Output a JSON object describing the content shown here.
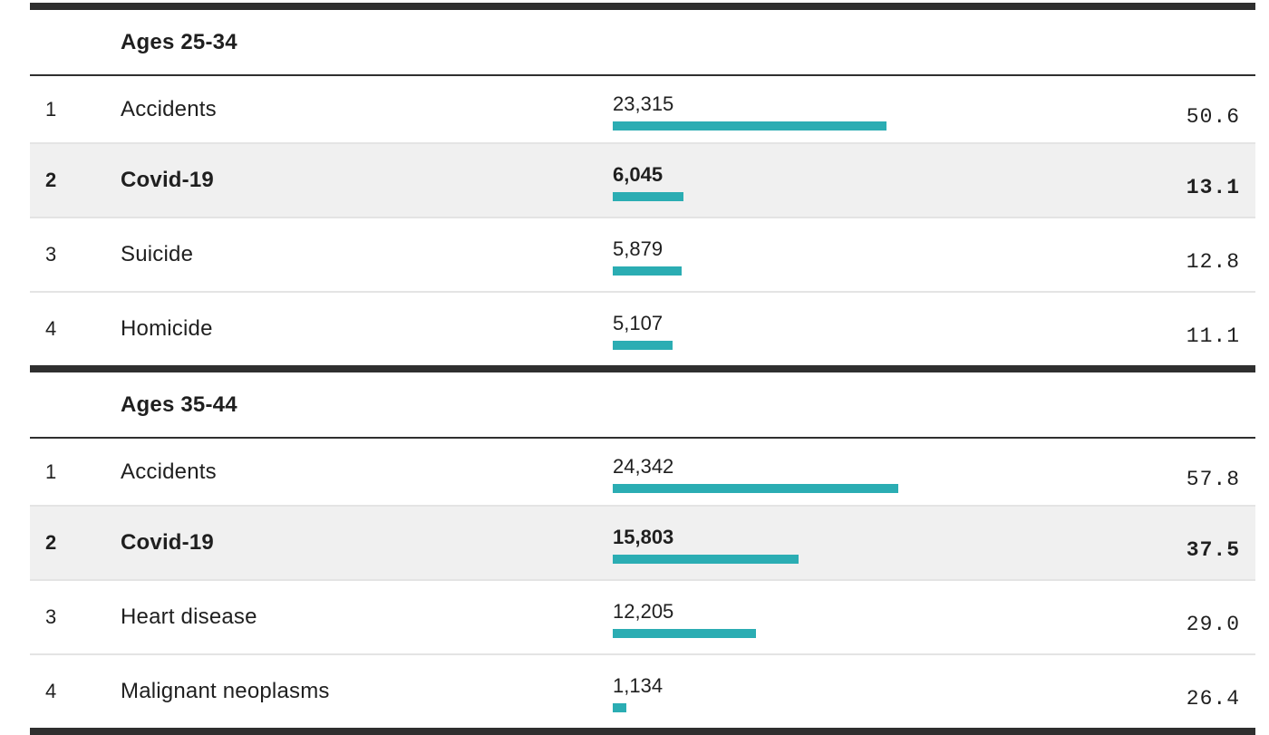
{
  "accent_color": "#2badb3",
  "highlight_bg_color": "#f0f0f0",
  "rule_color": "#2f2f2f",
  "sections": [
    {
      "title": "Ages 25-34",
      "rows": [
        {
          "rank": "1",
          "cause": "Accidents",
          "deaths": "23,315",
          "deaths_value": 23315,
          "rate": "50.6",
          "highlight": false
        },
        {
          "rank": "2",
          "cause": "Covid-19",
          "deaths": "6,045",
          "deaths_value": 6045,
          "rate": "13.1",
          "highlight": true
        },
        {
          "rank": "3",
          "cause": "Suicide",
          "deaths": "5,879",
          "deaths_value": 5879,
          "rate": "12.8",
          "highlight": false
        },
        {
          "rank": "4",
          "cause": "Homicide",
          "deaths": "5,107",
          "deaths_value": 5107,
          "rate": "11.1",
          "highlight": false
        }
      ]
    },
    {
      "title": "Ages 35-44",
      "rows": [
        {
          "rank": "1",
          "cause": "Accidents",
          "deaths": "24,342",
          "deaths_value": 24342,
          "rate": "57.8",
          "highlight": false
        },
        {
          "rank": "2",
          "cause": "Covid-19",
          "deaths": "15,803",
          "deaths_value": 15803,
          "rate": "37.5",
          "highlight": true
        },
        {
          "rank": "3",
          "cause": "Heart disease",
          "deaths": "12,205",
          "deaths_value": 12205,
          "rate": "29.0",
          "highlight": false
        },
        {
          "rank": "4",
          "cause": "Malignant neoplasms",
          "deaths": "1,134",
          "deaths_value": 1134,
          "rate": "26.4",
          "highlight": false
        }
      ]
    }
  ],
  "chart_data": [
    {
      "type": "bar",
      "orientation": "horizontal",
      "title": "Ages 25-34",
      "categories": [
        "Accidents",
        "Covid-19",
        "Suicide",
        "Homicide"
      ],
      "ranks": [
        1,
        2,
        3,
        4
      ],
      "series": [
        {
          "name": "deaths",
          "values": [
            23315,
            6045,
            5879,
            5107
          ]
        },
        {
          "name": "rate",
          "values": [
            50.6,
            13.1,
            12.8,
            11.1
          ]
        }
      ],
      "highlighted_category": "Covid-19",
      "bar_color": "#2badb3",
      "grid": false,
      "legend": false
    },
    {
      "type": "bar",
      "orientation": "horizontal",
      "title": "Ages 35-44",
      "categories": [
        "Accidents",
        "Covid-19",
        "Heart disease",
        "Malignant neoplasms"
      ],
      "ranks": [
        1,
        2,
        3,
        4
      ],
      "series": [
        {
          "name": "deaths",
          "values": [
            24342,
            15803,
            12205,
            1134
          ]
        },
        {
          "name": "rate",
          "values": [
            57.8,
            37.5,
            29.0,
            26.4
          ]
        }
      ],
      "highlighted_category": "Covid-19",
      "bar_color": "#2badb3",
      "grid": false,
      "legend": false
    }
  ]
}
